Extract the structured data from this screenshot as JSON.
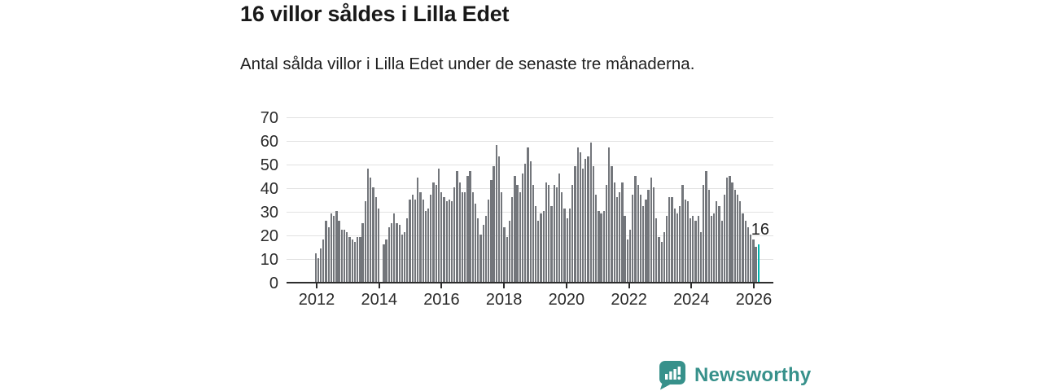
{
  "header": {
    "title": "16 villor såldes i Lilla Edet",
    "subtitle": "Antal sålda villor i Lilla Edet under de senaste tre månaderna."
  },
  "chart_data": {
    "type": "bar",
    "title": "16 villor såldes i Lilla Edet",
    "subtitle": "Antal sålda villor i Lilla Edet under de senaste tre månaderna.",
    "x_start": "2012-01",
    "x_end": "2026-02",
    "x_frequency": "monthly",
    "x_tick_labels": [
      "2012",
      "2014",
      "2016",
      "2018",
      "2020",
      "2022",
      "2024",
      "2026"
    ],
    "y_ticks": [
      0,
      10,
      20,
      30,
      40,
      50,
      60,
      70
    ],
    "ylim": [
      0,
      70
    ],
    "grid": "horizontal",
    "legend": "none",
    "bar_color": "#73767b",
    "highlight_color": "#00b3ae",
    "highlight_index": 169,
    "annotation": {
      "text": "16",
      "value": 16
    },
    "values": [
      12,
      10,
      14,
      18,
      26,
      23,
      29,
      28,
      30,
      26,
      22,
      22,
      21,
      19,
      18,
      17,
      19,
      19,
      25,
      34,
      48,
      44,
      40,
      36,
      31,
      0,
      16,
      18,
      23,
      25,
      29,
      25,
      24,
      20,
      21,
      27,
      35,
      37,
      35,
      44,
      38,
      35,
      30,
      31,
      37,
      42,
      41,
      48,
      38,
      36,
      34,
      35,
      34,
      40,
      47,
      42,
      38,
      38,
      45,
      47,
      38,
      33,
      27,
      20,
      24,
      28,
      35,
      43,
      49,
      58,
      53,
      38,
      23,
      19,
      26,
      36,
      45,
      41,
      38,
      46,
      50,
      57,
      51,
      41,
      32,
      26,
      29,
      30,
      42,
      41,
      32,
      41,
      40,
      46,
      38,
      31,
      27,
      31,
      41,
      49,
      57,
      55,
      48,
      52,
      53,
      59,
      49,
      37,
      30,
      29,
      30,
      41,
      57,
      49,
      42,
      36,
      38,
      42,
      28,
      18,
      22,
      37,
      45,
      41,
      37,
      32,
      35,
      39,
      44,
      40,
      27,
      19,
      17,
      21,
      28,
      36,
      36,
      31,
      29,
      32,
      41,
      35,
      34,
      27,
      28,
      26,
      28,
      21,
      41,
      47,
      39,
      28,
      29,
      34,
      32,
      26,
      37,
      44,
      45,
      42,
      39,
      37,
      34,
      29,
      26,
      23,
      20,
      18,
      15,
      16
    ]
  },
  "footer": {
    "brand": "Newsworthy",
    "brand_color": "#37918b",
    "logo_icon": "newsworthy-chart-pin-icon"
  }
}
